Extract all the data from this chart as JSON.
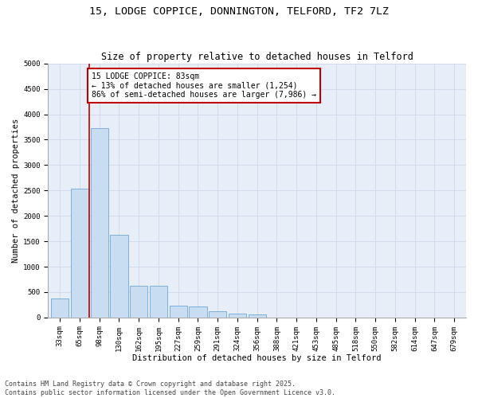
{
  "title_line1": "15, LODGE COPPICE, DONNINGTON, TELFORD, TF2 7LZ",
  "title_line2": "Size of property relative to detached houses in Telford",
  "xlabel": "Distribution of detached houses by size in Telford",
  "ylabel": "Number of detached properties",
  "categories": [
    "33sqm",
    "65sqm",
    "98sqm",
    "130sqm",
    "162sqm",
    "195sqm",
    "227sqm",
    "259sqm",
    "291sqm",
    "324sqm",
    "356sqm",
    "388sqm",
    "421sqm",
    "453sqm",
    "485sqm",
    "518sqm",
    "550sqm",
    "582sqm",
    "614sqm",
    "647sqm",
    "679sqm"
  ],
  "values": [
    370,
    2540,
    3720,
    1620,
    620,
    620,
    230,
    220,
    120,
    80,
    55,
    0,
    0,
    0,
    0,
    0,
    0,
    0,
    0,
    0,
    0
  ],
  "bar_color": "#c9ddf2",
  "bar_edge_color": "#5b9bd5",
  "vline_x": 1.5,
  "vline_color": "#c00000",
  "annotation_text": "15 LODGE COPPICE: 83sqm\n← 13% of detached houses are smaller (1,254)\n86% of semi-detached houses are larger (7,986) →",
  "annotation_box_color": "#c00000",
  "ylim": [
    0,
    5000
  ],
  "yticks": [
    0,
    500,
    1000,
    1500,
    2000,
    2500,
    3000,
    3500,
    4000,
    4500,
    5000
  ],
  "grid_color": "#cdd8ea",
  "background_color": "#e8eef7",
  "footer_line1": "Contains HM Land Registry data © Crown copyright and database right 2025.",
  "footer_line2": "Contains public sector information licensed under the Open Government Licence v3.0.",
  "title_fontsize": 9.5,
  "subtitle_fontsize": 8.5,
  "axis_label_fontsize": 7.5,
  "tick_fontsize": 6.5,
  "annotation_fontsize": 7,
  "footer_fontsize": 6
}
